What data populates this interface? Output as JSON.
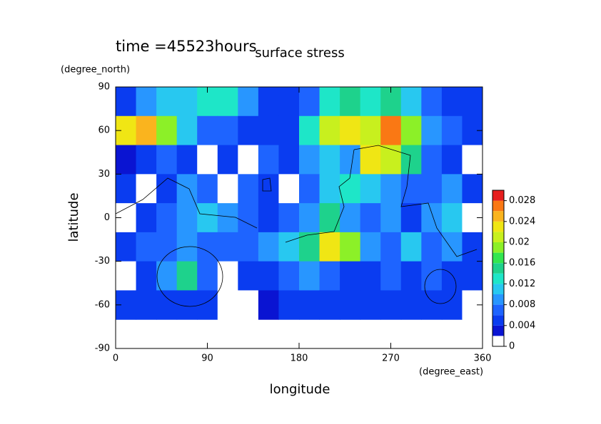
{
  "chart_data": {
    "type": "heatmap",
    "title": "surface stress",
    "annotation": "time =45523hours",
    "x_label": "longitude",
    "y_label": "latitude",
    "x_unit": "(degree_east)",
    "y_unit": "(degree_north)",
    "xlim": [
      0,
      360
    ],
    "ylim": [
      -90,
      90
    ],
    "xticks": [
      0,
      90,
      180,
      270,
      360
    ],
    "yticks": [
      90,
      60,
      30,
      0,
      -30,
      -60,
      -90
    ],
    "x": [
      10,
      30,
      50,
      70,
      90,
      110,
      130,
      150,
      170,
      190,
      210,
      230,
      250,
      270,
      290,
      310,
      330,
      350
    ],
    "y": [
      80,
      60,
      40,
      20,
      0,
      -20,
      -40,
      -60
    ],
    "values": [
      [
        0.004,
        0.008,
        0.01,
        0.01,
        0.012,
        0.012,
        0.008,
        0.004,
        0.004,
        0.006,
        0.012,
        0.014,
        0.012,
        0.014,
        0.01,
        0.006,
        0.004,
        0.004
      ],
      [
        0.022,
        0.024,
        0.018,
        0.01,
        0.006,
        0.006,
        0.004,
        0.004,
        0.004,
        0.012,
        0.02,
        0.022,
        0.02,
        0.026,
        0.018,
        0.008,
        0.006,
        0.004
      ],
      [
        0.002,
        0.004,
        0.006,
        0.004,
        0.001,
        0.004,
        0.001,
        0.006,
        0.004,
        0.008,
        0.01,
        0.008,
        0.022,
        0.02,
        0.014,
        0.006,
        0.004,
        0.001
      ],
      [
        0.004,
        0.001,
        0.004,
        0.008,
        0.006,
        0.001,
        0.006,
        0.004,
        0.001,
        0.006,
        0.01,
        0.012,
        0.01,
        0.008,
        0.006,
        0.006,
        0.008,
        0.004
      ],
      [
        0.001,
        0.004,
        0.006,
        0.008,
        0.01,
        0.008,
        0.006,
        0.004,
        0.006,
        0.008,
        0.014,
        0.008,
        0.006,
        0.008,
        0.004,
        0.008,
        0.01,
        0.001
      ],
      [
        0.004,
        0.006,
        0.006,
        0.008,
        0.006,
        0.006,
        0.006,
        0.008,
        0.01,
        0.014,
        0.022,
        0.018,
        0.008,
        0.006,
        0.01,
        0.006,
        0.008,
        0.004
      ],
      [
        0.001,
        0.004,
        0.008,
        0.014,
        0.006,
        0.001,
        0.004,
        0.004,
        0.006,
        0.008,
        0.006,
        0.004,
        0.004,
        0.006,
        0.004,
        0.006,
        0.004,
        0.004
      ],
      [
        0.004,
        0.004,
        0.004,
        0.004,
        0.004,
        0.001,
        0.001,
        0.002,
        0.004,
        0.004,
        0.004,
        0.004,
        0.004,
        0.004,
        0.004,
        0.004,
        0.004,
        0.001
      ]
    ],
    "levels": [
      0,
      0.002,
      0.004,
      0.006,
      0.008,
      0.01,
      0.012,
      0.014,
      0.016,
      0.018,
      0.02,
      0.022,
      0.024,
      0.026,
      0.028,
      0.03
    ],
    "colors": [
      "#ffffff",
      "#0a14d2",
      "#0a3cf0",
      "#1e64ff",
      "#2896ff",
      "#28c8f0",
      "#1ee6c8",
      "#1ed28c",
      "#32e650",
      "#8cf028",
      "#c8f01e",
      "#f0e614",
      "#fab41e",
      "#fa7814",
      "#e61e1e"
    ],
    "colorbar_ticks": [
      0,
      0.004,
      0.008,
      0.012,
      0.016,
      0.02,
      0.024,
      0.028
    ]
  }
}
